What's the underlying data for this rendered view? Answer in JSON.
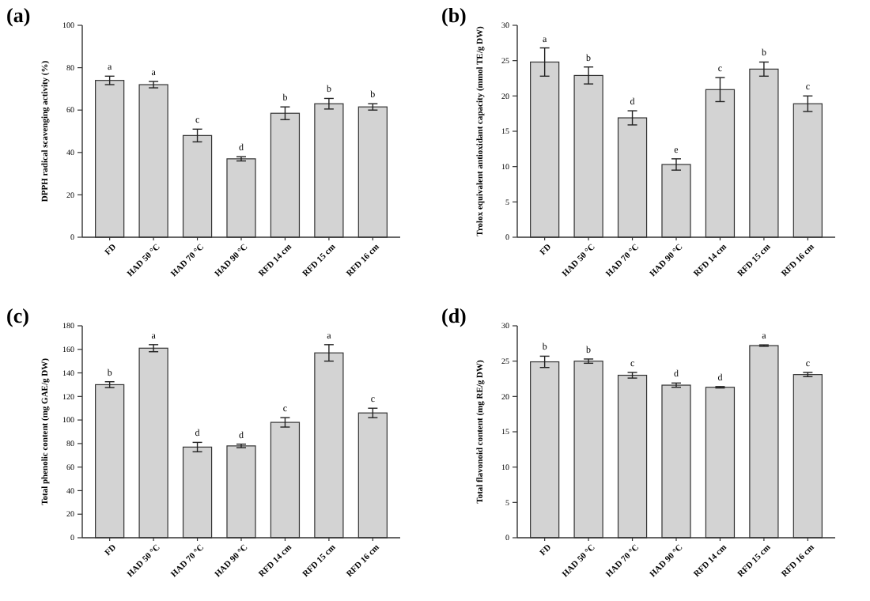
{
  "chart_data": [
    {
      "type": "bar",
      "title": "(a)",
      "ylabel": "DPPH radical scavenging activity (%)",
      "categories": [
        "FD",
        "HAD 50 °C",
        "HAD 70 °C",
        "HAD 90 °C",
        "RFD 14 cm",
        "RFD 15 cm",
        "RFD 16 cm"
      ],
      "values": [
        74,
        72,
        48,
        37,
        58.5,
        63,
        61.5
      ],
      "errors": [
        2,
        1.5,
        3,
        1,
        3,
        2.5,
        1.5
      ],
      "color": "#d3d3d3",
      "ylim": [
        0,
        100
      ],
      "yticks": [
        0,
        20,
        40,
        60,
        80,
        100
      ],
      "grid": false,
      "annotations": [
        {
          "text": "a",
          "x": "FD",
          "y": 76
        },
        {
          "text": "a",
          "x": "HAD 50 °C",
          "y": 73.5
        },
        {
          "text": "c",
          "x": "HAD 70 °C",
          "y": 51
        },
        {
          "text": "d",
          "x": "HAD 90 °C",
          "y": 38
        },
        {
          "text": "b",
          "x": "RFD 14 cm",
          "y": 61.5
        },
        {
          "text": "b",
          "x": "RFD 15 cm",
          "y": 65.5
        },
        {
          "text": "b",
          "x": "RFD 16 cm",
          "y": 63
        }
      ]
    },
    {
      "type": "bar",
      "title": "(b)",
      "ylabel": "Trolox equivalent antioxidant capacity (mmol TE/g DW)",
      "categories": [
        "FD",
        "HAD 50 °C",
        "HAD 70 °C",
        "HAD 90 °C",
        "RFD 14 cm",
        "RFD 15 cm",
        "RFD 16 cm"
      ],
      "values": [
        24.8,
        22.9,
        16.9,
        10.3,
        20.9,
        23.8,
        18.9
      ],
      "errors": [
        2,
        1.2,
        1,
        0.8,
        1.7,
        1,
        1.1
      ],
      "color": "#d3d3d3",
      "ylim": [
        0,
        30
      ],
      "yticks": [
        0,
        5,
        10,
        15,
        20,
        25,
        30
      ],
      "grid": false,
      "annotations": [
        {
          "text": "a",
          "x": "FD",
          "y": 26.8
        },
        {
          "text": "b",
          "x": "HAD 50 °C",
          "y": 24.1
        },
        {
          "text": "d",
          "x": "HAD 70 °C",
          "y": 17.9
        },
        {
          "text": "e",
          "x": "HAD 90 °C",
          "y": 11.1
        },
        {
          "text": "c",
          "x": "RFD 14 cm",
          "y": 22.6
        },
        {
          "text": "b",
          "x": "RFD 15 cm",
          "y": 24.8
        },
        {
          "text": "c",
          "x": "RFD 16 cm",
          "y": 20
        }
      ]
    },
    {
      "type": "bar",
      "title": "(c)",
      "ylabel": "Total phenolic content (mg GAE/g DW)",
      "categories": [
        "FD",
        "HAD 50 °C",
        "HAD 70 °C",
        "HAD 90 °C",
        "RFD 14 cm",
        "RFD 15 cm",
        "RFD 16 cm"
      ],
      "values": [
        130,
        161,
        77,
        78,
        98,
        157,
        106
      ],
      "errors": [
        2.5,
        3,
        4,
        1.5,
        4,
        7,
        4
      ],
      "color": "#d3d3d3",
      "ylim": [
        0,
        180
      ],
      "yticks": [
        0,
        20,
        40,
        60,
        80,
        100,
        120,
        140,
        160,
        180
      ],
      "grid": false,
      "annotations": [
        {
          "text": "b",
          "x": "FD",
          "y": 132.5
        },
        {
          "text": "a",
          "x": "HAD 50 °C",
          "y": 164
        },
        {
          "text": "d",
          "x": "HAD 70 °C",
          "y": 81
        },
        {
          "text": "d",
          "x": "HAD 90 °C",
          "y": 79.5
        },
        {
          "text": "c",
          "x": "RFD 14 cm",
          "y": 102
        },
        {
          "text": "a",
          "x": "RFD 15 cm",
          "y": 164
        },
        {
          "text": "c",
          "x": "RFD 16 cm",
          "y": 110
        }
      ]
    },
    {
      "type": "bar",
      "title": "(d)",
      "ylabel": "Total flavonoid content (mg RE/g DW)",
      "categories": [
        "FD",
        "HAD 50 °C",
        "HAD 70 °C",
        "HAD 90 °C",
        "RFD 14 cm",
        "RFD 15 cm",
        "RFD 16 cm"
      ],
      "values": [
        24.9,
        25,
        23,
        21.6,
        21.3,
        27.2,
        23.1
      ],
      "errors": [
        0.8,
        0.3,
        0.4,
        0.3,
        0.1,
        0.1,
        0.3
      ],
      "color": "#d3d3d3",
      "ylim": [
        0,
        30
      ],
      "yticks": [
        0,
        5,
        10,
        15,
        20,
        25,
        30
      ],
      "grid": false,
      "annotations": [
        {
          "text": "b",
          "x": "FD",
          "y": 25.7
        },
        {
          "text": "b",
          "x": "HAD 50 °C",
          "y": 25.3
        },
        {
          "text": "c",
          "x": "HAD 70 °C",
          "y": 23.4
        },
        {
          "text": "d",
          "x": "HAD 90 °C",
          "y": 21.9
        },
        {
          "text": "d",
          "x": "RFD 14 cm",
          "y": 21.4
        },
        {
          "text": "a",
          "x": "RFD 15 cm",
          "y": 27.3
        },
        {
          "text": "c",
          "x": "RFD 16 cm",
          "y": 23.4
        }
      ]
    }
  ]
}
